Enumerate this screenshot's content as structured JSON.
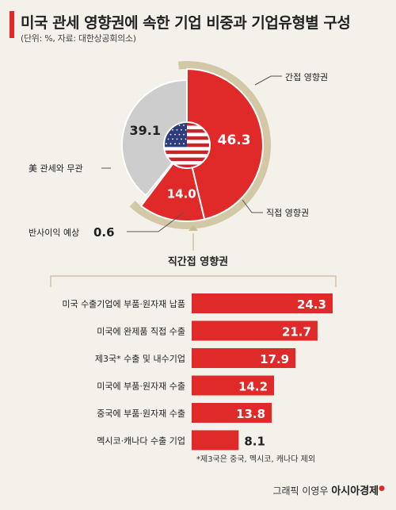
{
  "title": "미국 관세 영향권에 속한 기업 비중과 기업유형별 구성",
  "subtitle": "(단위: %, 자료: 대한상공회의소)",
  "colors": {
    "red": "#e02a2a",
    "gray": "#cdcdcd",
    "ring": "#d2c8a5"
  },
  "credit": {
    "graphic": "그래픽 이영우",
    "brand": "아시아경제"
  },
  "chart_data": [
    {
      "type": "pie",
      "slices": [
        {
          "label": "간접 영향권",
          "value": 46.3,
          "value_label": "46.3",
          "color": "#e02a2a"
        },
        {
          "label": "직접 영향권",
          "value": 14.0,
          "value_label": "14.0",
          "color": "#e02a2a"
        },
        {
          "label": "반사이익 예상",
          "value": 0.6,
          "value_label": "0.6",
          "color": "#cdcdcd"
        },
        {
          "label": "美 관세와 무관",
          "value": 39.1,
          "value_label": "39.1",
          "color": "#cdcdcd"
        }
      ]
    },
    {
      "type": "bar",
      "orientation": "horizontal",
      "title": "직간접 영향권",
      "categories": [
        "미국 수출기업에 부품·원자재 납품",
        "미국에 완제품 직접 수출",
        "제3국* 수출 및 내수기업",
        "미국에 부품·원자재 수출",
        "중국에 부품·원자재 수출",
        "멕시코·캐나다 수출 기업"
      ],
      "values": [
        24.3,
        21.7,
        17.9,
        14.2,
        13.8,
        8.1
      ],
      "value_labels": [
        "24.3",
        "21.7",
        "17.9",
        "14.2",
        "13.8",
        "8.1"
      ],
      "footnote": "*제3국은 중국, 멕시코, 캐나다 제외"
    }
  ]
}
